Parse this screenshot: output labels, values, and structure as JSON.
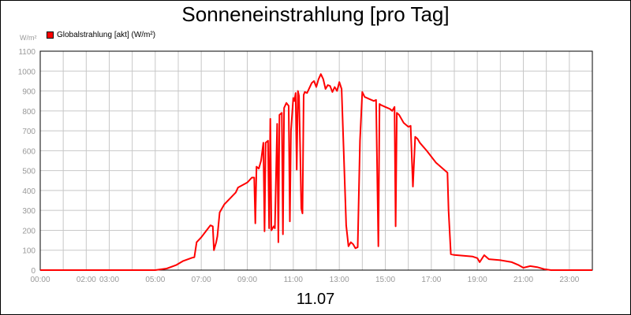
{
  "chart_data": {
    "type": "line",
    "title": "Sonneneinstrahlung [pro Tag]",
    "unit_label": "W/m²",
    "xlabel": "11.07",
    "ylabel": "",
    "ylim": [
      0,
      1100
    ],
    "xlim_hours": [
      0,
      24
    ],
    "grid": true,
    "legend": "top-left",
    "y_ticks": [
      "0",
      "100",
      "200",
      "300",
      "400",
      "500",
      "600",
      "700",
      "800",
      "900",
      "1000",
      "1100"
    ],
    "x_ticks": [
      {
        "label": "00:00",
        "hour": 0
      },
      {
        "label": "02:00",
        "hour": 2
      },
      {
        "label": "03:00",
        "hour": 3
      },
      {
        "label": "05:00",
        "hour": 5
      },
      {
        "label": "07:00",
        "hour": 7
      },
      {
        "label": "09:00",
        "hour": 9
      },
      {
        "label": "11:00",
        "hour": 11
      },
      {
        "label": "13:00",
        "hour": 13
      },
      {
        "label": "15:00",
        "hour": 15
      },
      {
        "label": "17:00",
        "hour": 17
      },
      {
        "label": "19:00",
        "hour": 19
      },
      {
        "label": "21:00",
        "hour": 21
      },
      {
        "label": "23:00",
        "hour": 23
      }
    ],
    "series": [
      {
        "name": "Globalstrahlung [akt] (W/m²)",
        "color": "#ff0000",
        "points": [
          [
            0,
            0
          ],
          [
            5.0,
            0
          ],
          [
            5.5,
            8
          ],
          [
            5.9,
            25
          ],
          [
            6.2,
            45
          ],
          [
            6.6,
            62
          ],
          [
            6.7,
            65
          ],
          [
            6.8,
            140
          ],
          [
            7.0,
            165
          ],
          [
            7.3,
            210
          ],
          [
            7.4,
            225
          ],
          [
            7.5,
            220
          ],
          [
            7.55,
            100
          ],
          [
            7.65,
            140
          ],
          [
            7.7,
            170
          ],
          [
            7.8,
            290
          ],
          [
            8.0,
            330
          ],
          [
            8.5,
            390
          ],
          [
            8.6,
            415
          ],
          [
            9.0,
            440
          ],
          [
            9.2,
            465
          ],
          [
            9.3,
            465
          ],
          [
            9.35,
            235
          ],
          [
            9.4,
            520
          ],
          [
            9.5,
            510
          ],
          [
            9.6,
            550
          ],
          [
            9.7,
            640
          ],
          [
            9.75,
            195
          ],
          [
            9.8,
            640
          ],
          [
            9.9,
            650
          ],
          [
            9.95,
            210
          ],
          [
            10.0,
            760
          ],
          [
            10.05,
            200
          ],
          [
            10.15,
            220
          ],
          [
            10.2,
            210
          ],
          [
            10.3,
            735
          ],
          [
            10.35,
            140
          ],
          [
            10.4,
            780
          ],
          [
            10.5,
            790
          ],
          [
            10.55,
            180
          ],
          [
            10.6,
            815
          ],
          [
            10.7,
            840
          ],
          [
            10.8,
            825
          ],
          [
            10.85,
            245
          ],
          [
            10.9,
            700
          ],
          [
            11.0,
            865
          ],
          [
            11.05,
            850
          ],
          [
            11.1,
            890
          ],
          [
            11.15,
            505
          ],
          [
            11.2,
            900
          ],
          [
            11.25,
            875
          ],
          [
            11.3,
            600
          ],
          [
            11.35,
            310
          ],
          [
            11.4,
            285
          ],
          [
            11.45,
            880
          ],
          [
            11.5,
            895
          ],
          [
            11.6,
            890
          ],
          [
            11.8,
            940
          ],
          [
            11.9,
            950
          ],
          [
            12.0,
            920
          ],
          [
            12.1,
            960
          ],
          [
            12.2,
            985
          ],
          [
            12.3,
            960
          ],
          [
            12.4,
            910
          ],
          [
            12.5,
            930
          ],
          [
            12.6,
            925
          ],
          [
            12.7,
            895
          ],
          [
            12.8,
            920
          ],
          [
            12.9,
            900
          ],
          [
            13.0,
            945
          ],
          [
            13.1,
            910
          ],
          [
            13.3,
            225
          ],
          [
            13.4,
            120
          ],
          [
            13.5,
            140
          ],
          [
            13.6,
            130
          ],
          [
            13.7,
            110
          ],
          [
            13.8,
            115
          ],
          [
            13.9,
            650
          ],
          [
            14.0,
            895
          ],
          [
            14.1,
            870
          ],
          [
            14.3,
            860
          ],
          [
            14.5,
            850
          ],
          [
            14.6,
            855
          ],
          [
            14.7,
            120
          ],
          [
            14.75,
            835
          ],
          [
            14.8,
            830
          ],
          [
            15.0,
            820
          ],
          [
            15.2,
            810
          ],
          [
            15.3,
            800
          ],
          [
            15.4,
            820
          ],
          [
            15.45,
            220
          ],
          [
            15.5,
            790
          ],
          [
            15.6,
            780
          ],
          [
            15.8,
            740
          ],
          [
            16.0,
            720
          ],
          [
            16.1,
            725
          ],
          [
            16.2,
            420
          ],
          [
            16.3,
            670
          ],
          [
            16.4,
            660
          ],
          [
            16.5,
            640
          ],
          [
            16.8,
            600
          ],
          [
            17.2,
            540
          ],
          [
            17.5,
            510
          ],
          [
            17.7,
            490
          ],
          [
            17.75,
            300
          ],
          [
            17.85,
            80
          ],
          [
            18.0,
            76
          ],
          [
            18.8,
            68
          ],
          [
            19.0,
            60
          ],
          [
            19.1,
            40
          ],
          [
            19.3,
            75
          ],
          [
            19.5,
            55
          ],
          [
            20.0,
            50
          ],
          [
            20.5,
            40
          ],
          [
            20.8,
            25
          ],
          [
            21.0,
            12
          ],
          [
            21.3,
            20
          ],
          [
            21.6,
            15
          ],
          [
            21.9,
            5
          ],
          [
            22.2,
            0
          ],
          [
            24.0,
            0
          ]
        ]
      }
    ]
  }
}
